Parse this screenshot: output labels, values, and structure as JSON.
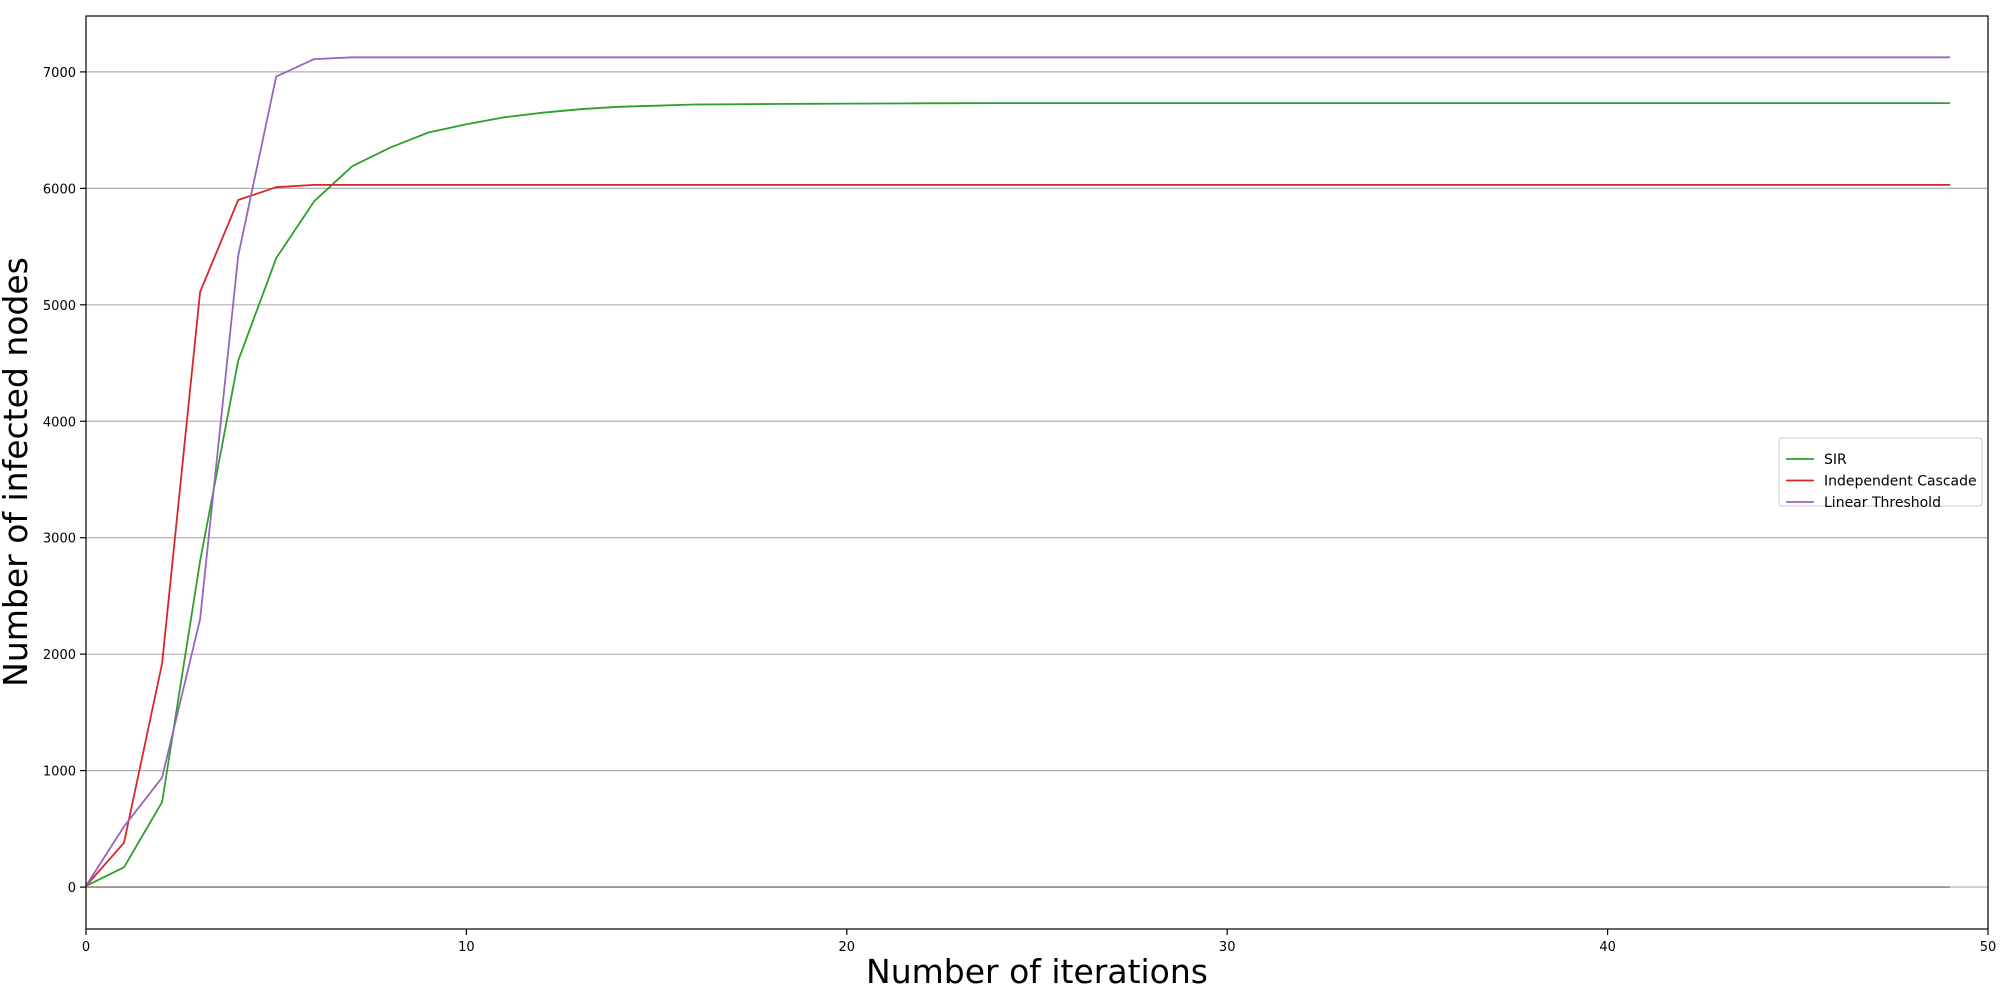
{
  "chart_data": {
    "type": "line",
    "title": "",
    "xlabel": "Number of iterations",
    "ylabel": "Number of infected nodes",
    "xlim": [
      0,
      50
    ],
    "ylim": [
      -360,
      7480
    ],
    "xticks": [
      0,
      10,
      20,
      30,
      40,
      50
    ],
    "yticks": [
      0,
      1000,
      2000,
      3000,
      4000,
      5000,
      6000,
      7000
    ],
    "grid": "horizontal",
    "legend_position": "center-right",
    "x": [
      0,
      1,
      2,
      3,
      4,
      5,
      6,
      7,
      8,
      9,
      10,
      11,
      12,
      13,
      14,
      15,
      16,
      17,
      18,
      19,
      20,
      21,
      22,
      23,
      24,
      25,
      26,
      27,
      28,
      29,
      30,
      31,
      32,
      33,
      34,
      35,
      36,
      37,
      38,
      39,
      40,
      41,
      42,
      43,
      44,
      45,
      46,
      47,
      48,
      49
    ],
    "series": [
      {
        "name": "SIR",
        "color": "#2ca02c",
        "values": [
          10,
          170,
          730,
          2800,
          4520,
          5400,
          5890,
          6190,
          6350,
          6480,
          6550,
          6610,
          6650,
          6680,
          6700,
          6710,
          6720,
          6722,
          6724,
          6726,
          6728,
          6729,
          6730,
          6731,
          6732,
          6732,
          6732,
          6732,
          6732,
          6732,
          6732,
          6732,
          6732,
          6732,
          6732,
          6732,
          6732,
          6732,
          6732,
          6732,
          6732,
          6732,
          6732,
          6732,
          6732,
          6732,
          6732,
          6732,
          6732,
          6732
        ]
      },
      {
        "name": "Independent Cascade",
        "color": "#d62728",
        "values": [
          10,
          380,
          1920,
          5110,
          5900,
          6010,
          6030,
          6030,
          6030,
          6030,
          6030,
          6030,
          6030,
          6030,
          6030,
          6030,
          6030,
          6030,
          6030,
          6030,
          6030,
          6030,
          6030,
          6030,
          6030,
          6030,
          6030,
          6030,
          6030,
          6030,
          6030,
          6030,
          6030,
          6030,
          6030,
          6030,
          6030,
          6030,
          6030,
          6030,
          6030,
          6030,
          6030,
          6030,
          6030,
          6030,
          6030,
          6030,
          6030,
          6030
        ]
      },
      {
        "name": "Linear Threshold",
        "color": "#9467bd",
        "values": [
          10,
          520,
          940,
          2300,
          5420,
          6960,
          7110,
          7125,
          7125,
          7125,
          7125,
          7125,
          7125,
          7125,
          7125,
          7125,
          7125,
          7125,
          7125,
          7125,
          7125,
          7125,
          7125,
          7125,
          7125,
          7125,
          7125,
          7125,
          7125,
          7125,
          7125,
          7125,
          7125,
          7125,
          7125,
          7125,
          7125,
          7125,
          7125,
          7125,
          7125,
          7125,
          7125,
          7125,
          7125,
          7125,
          7125,
          7125,
          7125,
          7125
        ]
      },
      {
        "color": "#ff7f0e",
        "values": [
          0,
          0,
          0,
          0,
          0,
          0,
          0,
          0,
          0,
          0,
          0,
          0,
          0,
          0,
          0,
          0,
          0,
          0,
          0,
          0,
          0,
          0,
          0,
          0,
          0,
          0,
          0,
          0,
          0,
          0,
          0,
          0,
          0,
          0,
          0,
          0,
          0,
          0,
          0,
          0,
          0,
          0,
          0,
          0,
          0,
          0,
          0,
          0,
          0,
          0
        ]
      },
      {
        "color": "#8c9c9c",
        "values": [
          0,
          0,
          0,
          0,
          0,
          0,
          0,
          0,
          0,
          0,
          0,
          0,
          0,
          0,
          0,
          0,
          0,
          0,
          0,
          0,
          0,
          0,
          0,
          0,
          0,
          0,
          0,
          0,
          0,
          0,
          0,
          0,
          0,
          0,
          0,
          0,
          0,
          0,
          0,
          0,
          0,
          0,
          0,
          0,
          0,
          0,
          0,
          0,
          0,
          0
        ]
      }
    ]
  }
}
